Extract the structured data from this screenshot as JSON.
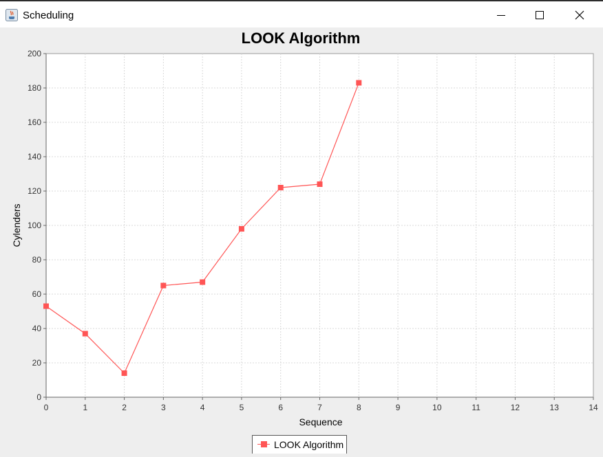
{
  "window": {
    "title": "Scheduling"
  },
  "icons": {
    "app": "java-icon",
    "minimize": "minimize-icon",
    "maximize": "maximize-icon",
    "close": "close-icon"
  },
  "chart_data": {
    "type": "line",
    "title": "LOOK Algorithm",
    "xlabel": "Sequence",
    "ylabel": "Cylenders",
    "xlim": [
      0,
      14
    ],
    "ylim": [
      0,
      200
    ],
    "xticks": [
      "0",
      "1",
      "2",
      "3",
      "4",
      "5",
      "6",
      "7",
      "8",
      "9",
      "10",
      "11",
      "12",
      "13",
      "14"
    ],
    "yticks": [
      "0",
      "20",
      "40",
      "60",
      "80",
      "100",
      "120",
      "140",
      "160",
      "180",
      "200"
    ],
    "grid": true,
    "legend_position": "bottom-center",
    "series": [
      {
        "name": "LOOK Algorithm",
        "color": "#ff5555",
        "marker": "square",
        "x": [
          0,
          1,
          2,
          3,
          4,
          5,
          6,
          7,
          8
        ],
        "y": [
          53,
          37,
          14,
          65,
          67,
          98,
          122,
          124,
          183
        ]
      }
    ]
  }
}
